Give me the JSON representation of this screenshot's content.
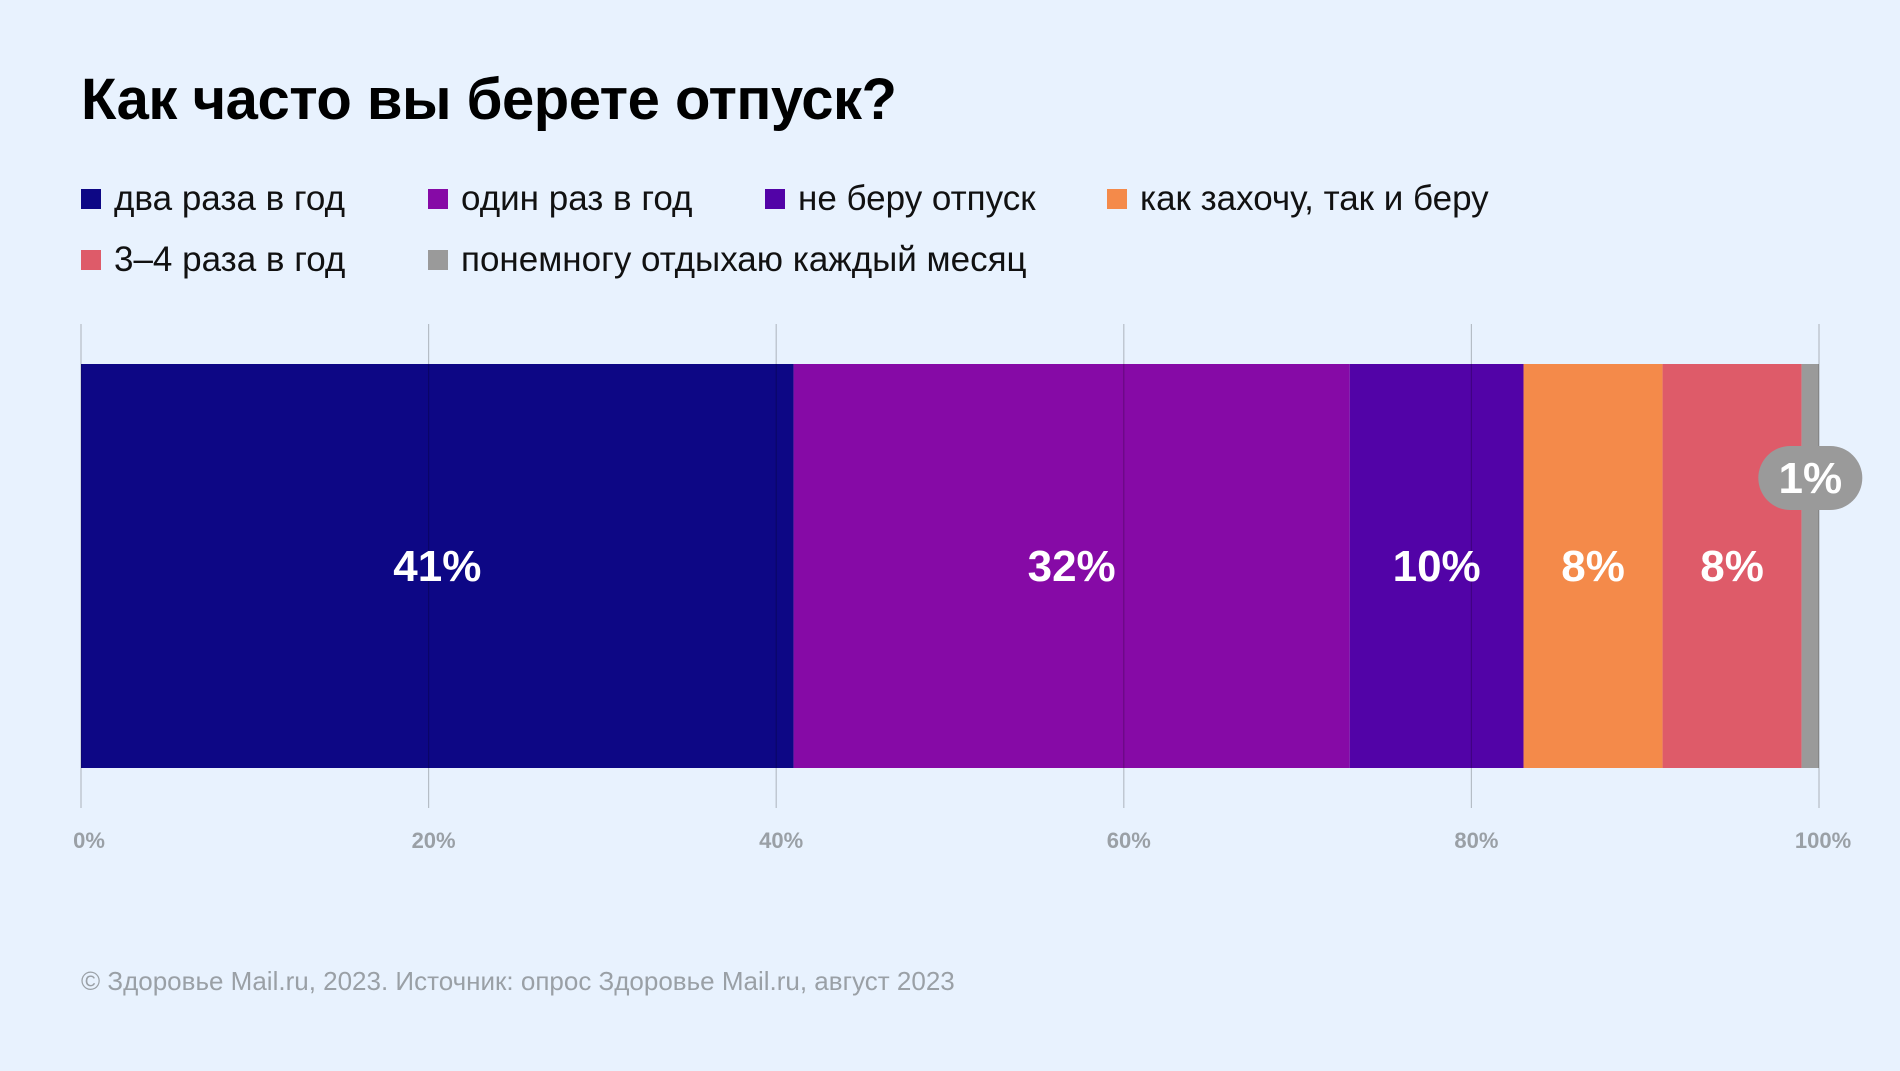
{
  "title": "Как часто вы берете отпуск?",
  "footer": "© Здоровье Mail.ru, 2023. Источник: опрос Здоровье Mail.ru, август 2023",
  "chart_data": {
    "type": "bar",
    "orientation": "horizontal-stacked-100",
    "title": "Как часто вы берете отпуск?",
    "xlim": [
      0,
      100
    ],
    "ticks": [
      {
        "value": 0,
        "label": "0%"
      },
      {
        "value": 20,
        "label": "20%"
      },
      {
        "value": 40,
        "label": "40%"
      },
      {
        "value": 60,
        "label": "60%"
      },
      {
        "value": 80,
        "label": "80%"
      },
      {
        "value": 100,
        "label": "100%"
      }
    ],
    "legend_position": "top",
    "series": [
      {
        "name": "два раза в год",
        "value": 41,
        "label": "41%",
        "color": "#0d0785"
      },
      {
        "name": "один раз в год",
        "value": 32,
        "label": "32%",
        "color": "#860aa6"
      },
      {
        "name": "не беру отпуск",
        "value": 10,
        "label": "10%",
        "color": "#5203a7"
      },
      {
        "name": "как захочу, так и беру",
        "value": 8,
        "label": "8%",
        "color": "#f48a4a"
      },
      {
        "name": "3–4 раза в год",
        "value": 8,
        "label": "8%",
        "color": "#de5b69"
      },
      {
        "name": "понемногу отдыхаю каждый месяц",
        "value": 1,
        "label": "1%",
        "color": "#9a9a9a"
      }
    ]
  }
}
